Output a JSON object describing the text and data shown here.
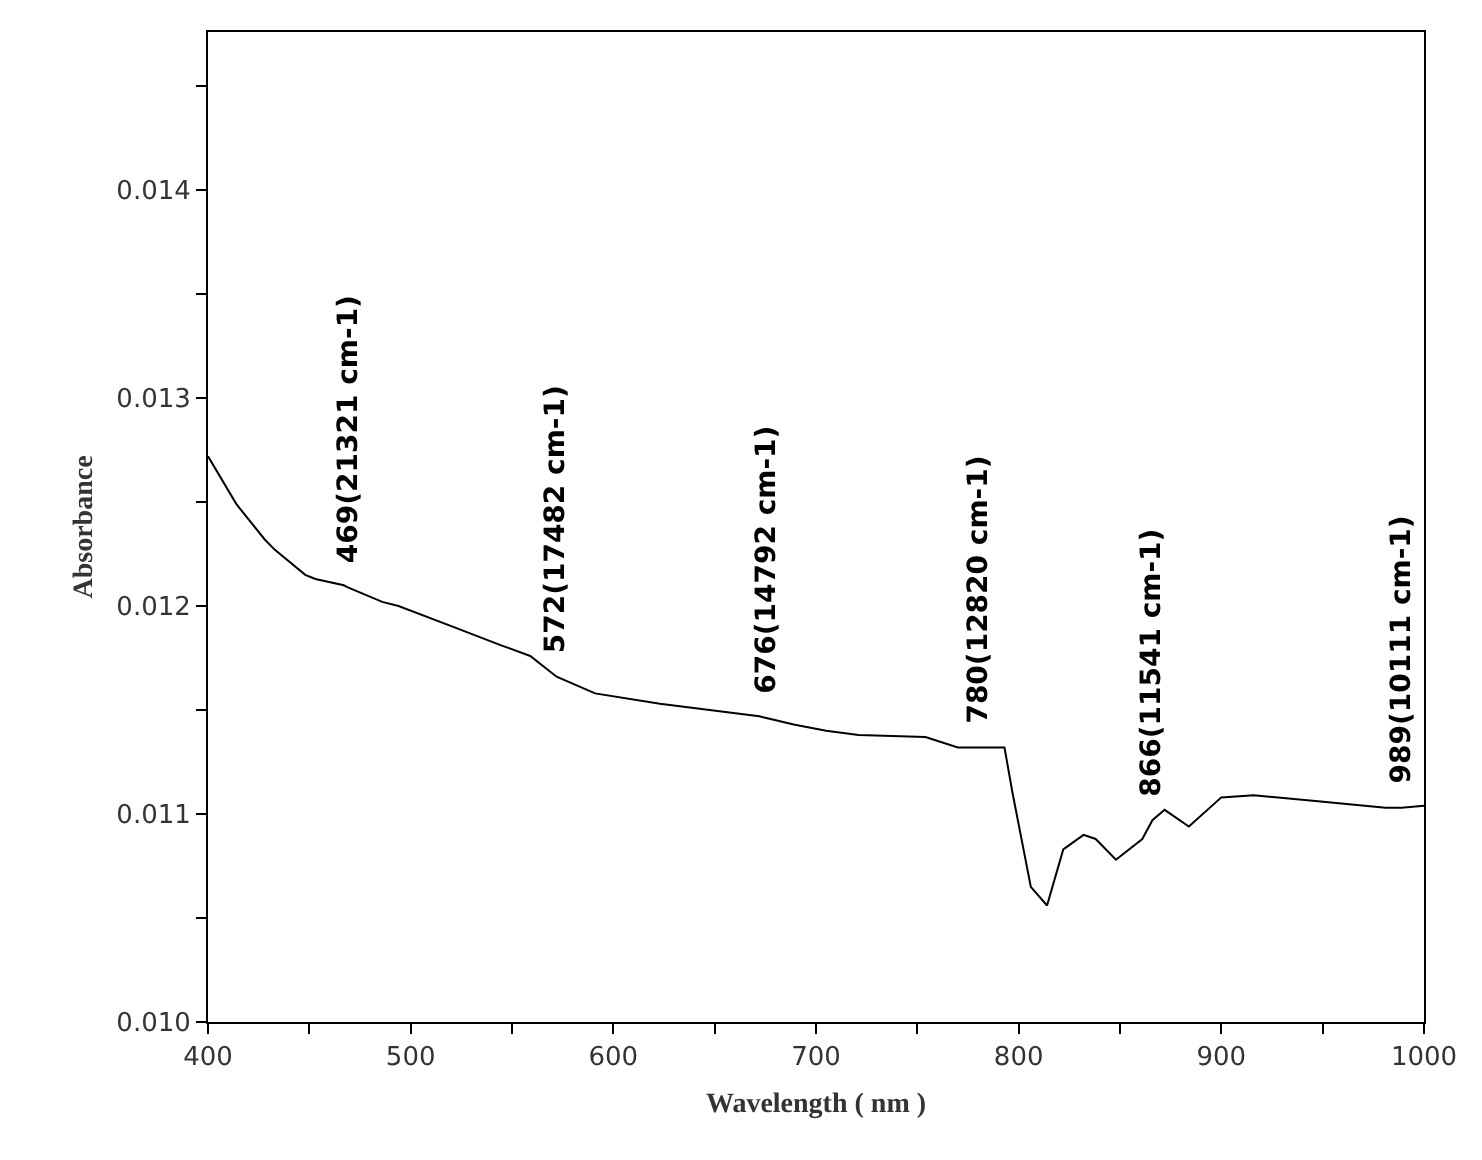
{
  "chart_data": {
    "type": "line",
    "xlabel": "Wavelength ( nm )",
    "ylabel": "Absorbance",
    "x": [
      400,
      414,
      428,
      433,
      448,
      453,
      467,
      469,
      486,
      494,
      521,
      545,
      559,
      572,
      591,
      623,
      672,
      676,
      689,
      705,
      721,
      754,
      770,
      780,
      793,
      797,
      806,
      814,
      822,
      832,
      838,
      848,
      861,
      866,
      872,
      884,
      900,
      916,
      949,
      981,
      989,
      1000
    ],
    "series": [
      {
        "color": "#000000",
        "values": [
          0.01272,
          0.01249,
          0.01232,
          0.01227,
          0.01215,
          0.01213,
          0.0121,
          0.01209,
          0.01202,
          0.012,
          0.0119,
          0.01181,
          0.01176,
          0.01166,
          0.01158,
          0.01153,
          0.01147,
          0.01146,
          0.01143,
          0.0114,
          0.01138,
          0.01137,
          0.01132,
          0.01132,
          0.01132,
          0.0111,
          0.01065,
          0.01056,
          0.01083,
          0.0109,
          0.01088,
          0.01078,
          0.01088,
          0.01097,
          0.01102,
          0.01094,
          0.01108,
          0.01109,
          0.01106,
          0.01103,
          0.01103,
          0.01104
        ]
      }
    ],
    "xlim": [
      400,
      1000
    ],
    "ylim": [
      0.01,
      0.01476
    ],
    "xticks": [
      400,
      {
        "value": 450,
        "label": null
      },
      500,
      {
        "value": 550,
        "label": null
      },
      600,
      {
        "value": 650,
        "label": null
      },
      700,
      {
        "value": 750,
        "label": null
      },
      800,
      {
        "value": 850,
        "label": null
      },
      900,
      {
        "value": 950,
        "label": null
      },
      1000
    ],
    "yticks": [
      {
        "value": 0.01,
        "label": "0.010"
      },
      {
        "value": 0.0105,
        "label": null
      },
      {
        "value": 0.011,
        "label": "0.011"
      },
      {
        "value": 0.0115,
        "label": null
      },
      {
        "value": 0.012,
        "label": "0.012"
      },
      {
        "value": 0.0125,
        "label": null
      },
      {
        "value": 0.013,
        "label": "0.013"
      },
      {
        "value": 0.0135,
        "label": null
      },
      {
        "value": 0.014,
        "label": "0.014"
      },
      {
        "value": 0.0145,
        "label": null
      }
    ],
    "marker": "none",
    "line_style": "solid",
    "annotations": [
      {
        "text": "469(21321 cm-1)",
        "x": 469,
        "y": 0.01209
      },
      {
        "text": "572(17482 cm-1)",
        "x": 572,
        "y": 0.01166
      },
      {
        "text": "676(14792 cm-1)",
        "x": 676,
        "y": 0.01146
      },
      {
        "text": "780(12820 cm-1)",
        "x": 780,
        "y": 0.01132
      },
      {
        "text": "866(11541 cm-1)",
        "x": 866,
        "y": 0.01097
      },
      {
        "text": "989(10111 cm-1)",
        "x": 989,
        "y": 0.01103
      }
    ]
  }
}
